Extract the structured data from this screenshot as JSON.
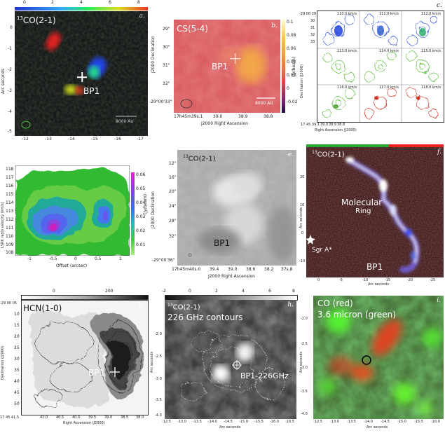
{
  "panels": {
    "a": {
      "letter": "a.",
      "title_sup": "13",
      "title": "CO(2-1)",
      "source": "BP1",
      "scale": "8000 AU",
      "ylabel": "Arc seconds",
      "yticks": [
        "0",
        "-1",
        "-2",
        "-3",
        "-4",
        "-5"
      ],
      "xticks": [
        "-12",
        "-13",
        "-14",
        "-15",
        "-16",
        "-17"
      ],
      "cbar_ticks": [
        "0",
        "2",
        "4",
        "6",
        "8"
      ]
    },
    "b": {
      "letter": "b.",
      "title": "CS(5-4)",
      "source": "BP1",
      "scale": "8000 AU",
      "yticks": [
        "29\"",
        "30\"",
        "31\"",
        "32\"",
        "-29°00'33\""
      ],
      "xticks": [
        "17h45m39s.1",
        "39.0",
        "38.9",
        "38.8"
      ],
      "xlabel": "J2000 Right Ascension",
      "ylabel": "J2000 Declination",
      "cbar_ticks": [
        "0.1",
        "0.08",
        "0.06",
        "0.04",
        "0.02",
        "0",
        "-0.02"
      ],
      "cbar_label": "(Jy/beam)"
    },
    "c": {
      "letter": "c.",
      "velocities": [
        "110.0 km/s",
        "111.0 km/s",
        "112.0 km/s",
        "113.0 km/s",
        "114.0 km/s",
        "115.0 km/s",
        "116.0 km/s",
        "117.0 km/s",
        "118.0 km/s"
      ],
      "yticks": [
        "-29 00 29",
        "30",
        "31",
        "32",
        "33"
      ],
      "xticks": [
        "17 45 39.1",
        "39.0",
        "38.9",
        "38.8"
      ],
      "xlabel": "Right Ascension (J2000)",
      "ylabel": "Declination (J2000)"
    },
    "d": {
      "letter": "d.",
      "yticks": [
        "118",
        "117",
        "116",
        "115",
        "114",
        "113",
        "112",
        "111",
        "110",
        "109",
        "108"
      ],
      "xticks": [
        "-1",
        "-0.5",
        "0",
        "0.5",
        "1"
      ],
      "xlabel": "Offset (arcsec)",
      "ylabel": "LSRK radio velocity (km/s)",
      "cbar_ticks": [
        "0.06",
        "0.05",
        "0.04",
        "0.03",
        "0.02",
        "0.01"
      ],
      "cbar_label": "(Jy/beam)"
    },
    "e": {
      "letter": "e.",
      "title_sup": "13",
      "title": "CO(2-1)",
      "source": "BP1",
      "yticks": [
        "12\"",
        "16\"",
        "20\"",
        "24\"",
        "28\"",
        "32\"",
        "-29°00'36\""
      ],
      "xticks": [
        "17h45m40s.0",
        "39.4",
        "39.0",
        "38.6",
        "38.2",
        "37s.8"
      ],
      "xlabel": "J2000 Right Ascension",
      "ylabel": "J2000 Declination"
    },
    "f": {
      "letter": "f.",
      "title_sup": "13",
      "title": "CO(2-1)",
      "ring1": "Molecular",
      "ring2": "Ring",
      "sgra": "Sgr A*",
      "source": "BP1",
      "yticks": [
        "20",
        "10",
        "0",
        "-10"
      ],
      "xticks": [
        "0",
        "-5",
        "-10",
        "-15",
        "-20",
        "-25"
      ],
      "xlabel": "Arc seconds",
      "ylabel": "Arc seconds"
    },
    "g": {
      "letter": "g.",
      "title": "HCN(1-0)",
      "source": "BP1",
      "yticks": [
        "-29 00 05",
        "10",
        "15",
        "20",
        "25",
        "30",
        "35",
        "40",
        "45",
        "50"
      ],
      "xticks": [
        "17 45 41.5",
        "41.0",
        "40.5",
        "40.0",
        "39.5",
        "39.0",
        "38.5",
        "38.0"
      ],
      "xlabel": "Right Ascension (J2000)",
      "ylabel": "Declination (J2000)",
      "cbar_ticks": [
        "0",
        "200"
      ]
    },
    "h": {
      "letter": "h.",
      "title_sup": "13",
      "title": "CO(2-1)",
      "subtitle": "226 GHz contours",
      "source": "BP1-226GHz",
      "yticks": [
        "-2.0",
        "-2.5",
        "-3.0",
        "-3.5",
        "-4.0"
      ],
      "xticks": [
        "-12.5",
        "-13.0",
        "-13.5",
        "-14.0",
        "-14.5",
        "-15.0",
        "-15.5",
        "-16.0",
        "-16.5"
      ],
      "xlabel": "Arc seconds",
      "ylabel": "Arc seconds",
      "cbar_ticks": [
        "-2",
        "0",
        "2",
        "4",
        "6",
        "8"
      ]
    },
    "i": {
      "letter": "i.",
      "line1": "CO (red)",
      "line2": "3.6 micron (green)",
      "yticks": [
        "-2.0",
        "-2.5",
        "-3.0",
        "-3.5",
        "-4.0"
      ],
      "xticks": [
        "-12.5",
        "-13.0",
        "-13.5",
        "-14.0",
        "-14.5",
        "-15.0",
        "-15.5",
        "-16.0"
      ],
      "xlabel": "Arc seconds",
      "ylabel": "Arc seconds"
    }
  }
}
